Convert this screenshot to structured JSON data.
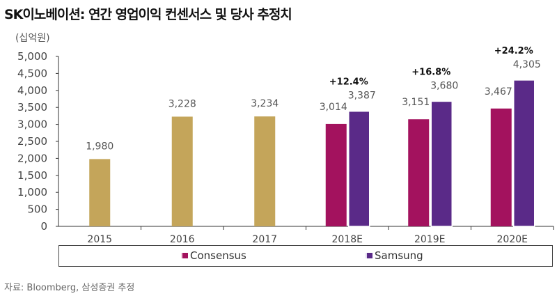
{
  "chart_data": {
    "type": "bar",
    "title": "SK이노베이션: 연간 영업이익 컨센서스 및 당사 추정치",
    "unit_label": "(십억원)",
    "categories": [
      "2015",
      "2016",
      "2017",
      "2018E",
      "2019E",
      "2020E"
    ],
    "ylim": [
      0,
      5000
    ],
    "yticks": [
      "0",
      "500",
      "1,000",
      "1,500",
      "2,000",
      "2,500",
      "3,000",
      "3,500",
      "4,000",
      "4,500",
      "5,000"
    ],
    "actual": {
      "values": [
        1980,
        3228,
        3234,
        null,
        null,
        null
      ],
      "labels": [
        "1,980",
        "3,228",
        "3,234",
        "",
        "",
        ""
      ],
      "color": "#C4A55A"
    },
    "series": [
      {
        "name": "Consensus",
        "values": [
          null,
          null,
          null,
          3014,
          3151,
          3467
        ],
        "labels": [
          "",
          "",
          "",
          "3,014",
          "3,151",
          "3,467"
        ],
        "color": "#A3125E"
      },
      {
        "name": "Samsung",
        "values": [
          null,
          null,
          null,
          3387,
          3680,
          4305
        ],
        "labels": [
          "",
          "",
          "",
          "3,387",
          "3,680",
          "4,305"
        ],
        "color": "#5A2A88"
      }
    ],
    "annotations": [
      "",
      "",
      "",
      "+12.4%",
      "+16.8%",
      "+24.2%"
    ],
    "legend": "bottom"
  },
  "source": "자료: Bloomberg, 삼성증권 추정"
}
